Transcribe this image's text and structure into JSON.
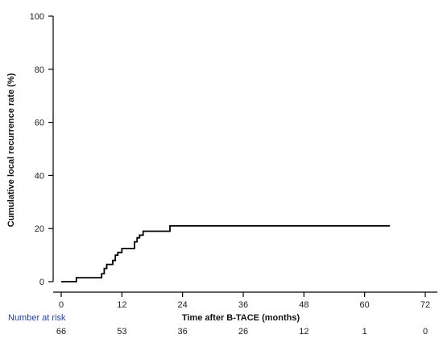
{
  "chart_data": {
    "type": "line",
    "step": true,
    "xlabel": "Time after B-TACE (months)",
    "ylabel": "Cumulative local recurrence rate (%)",
    "xlim": [
      0,
      72
    ],
    "ylim": [
      0,
      100
    ],
    "x_ticks": [
      "0",
      "12",
      "24",
      "36",
      "48",
      "60",
      "72"
    ],
    "y_ticks": [
      "0",
      "20",
      "40",
      "60",
      "80",
      "100"
    ],
    "grid": false,
    "series": [
      {
        "points": [
          [
            0,
            0
          ],
          [
            3,
            0
          ],
          [
            3,
            1.5
          ],
          [
            8,
            1.5
          ],
          [
            8,
            3
          ],
          [
            8.5,
            3
          ],
          [
            8.5,
            5
          ],
          [
            9,
            5
          ],
          [
            9,
            6.5
          ],
          [
            10.2,
            6.5
          ],
          [
            10.2,
            8
          ],
          [
            10.7,
            8
          ],
          [
            10.7,
            10
          ],
          [
            11.2,
            10
          ],
          [
            11.2,
            11
          ],
          [
            12,
            11
          ],
          [
            12,
            12.5
          ],
          [
            14.5,
            12.5
          ],
          [
            14.5,
            15
          ],
          [
            15,
            15
          ],
          [
            15,
            16.5
          ],
          [
            15.5,
            16.5
          ],
          [
            15.5,
            17.5
          ],
          [
            16.2,
            17.5
          ],
          [
            16.2,
            19
          ],
          [
            21.5,
            19
          ],
          [
            21.5,
            21
          ],
          [
            65,
            21
          ]
        ],
        "color": "#000000"
      }
    ],
    "number_at_risk": {
      "title": "Number at risk",
      "values": [
        "66",
        "53",
        "36",
        "26",
        "12",
        "1",
        "0"
      ]
    }
  }
}
